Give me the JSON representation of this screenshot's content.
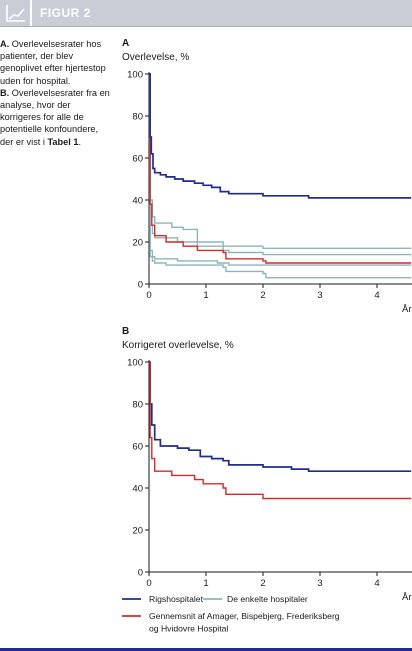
{
  "header": {
    "title": "FIGUR 2",
    "icon": "line-chart-icon"
  },
  "caption": {
    "a_label": "A.",
    "a_text": "Overlevelsesrater hos patienter, der blev genoplivet efter hjertestop uden for hospital.",
    "b_label": "B.",
    "b_text_before": "Overlevelsesrater fra en analyse, hvor der korrigeres for alle de potentielle konfoundere, der er vist i",
    "b_ref": "Tabel 1",
    "b_text_after": "."
  },
  "colors": {
    "rigshospitalet": "#1f2d8c",
    "enkelte": "#8cb5bd",
    "gennemsnit": "#d42a2a",
    "header": "#c9ced6"
  },
  "legend": [
    {
      "name": "Rigshospitalet",
      "color": "#1f2d8c"
    },
    {
      "name": "De enkelte hospitaler",
      "color": "#8cb5bd"
    },
    {
      "name": "Gennemsnit af Amager, Bispebjerg, Frederiksberg og Hvidovre Hospital",
      "color": "#d42a2a"
    }
  ],
  "chart_data": [
    {
      "type": "line",
      "panel": "A",
      "ylabel": "Overlevelse, %",
      "xlabel": "År",
      "xlim": [
        0,
        4.6
      ],
      "ylim": [
        0,
        100
      ],
      "xticks": [
        0,
        1,
        2,
        3,
        4
      ],
      "yticks": [
        0,
        20,
        40,
        60,
        80,
        100
      ],
      "series": [
        {
          "name": "De enkelte hospitaler",
          "color": "#8cb5bd",
          "points": [
            [
              0,
              100
            ],
            [
              0.02,
              40
            ],
            [
              0.06,
              32
            ],
            [
              0.1,
              29
            ],
            [
              0.4,
              27
            ],
            [
              0.6,
              26
            ],
            [
              0.85,
              20
            ],
            [
              1.3,
              18
            ],
            [
              2.0,
              17
            ],
            [
              4.6,
              17
            ]
          ]
        },
        {
          "name": "De enkelte hospitaler",
          "color": "#8cb5bd",
          "points": [
            [
              0,
              100
            ],
            [
              0.02,
              28
            ],
            [
              0.06,
              24
            ],
            [
              0.1,
              22
            ],
            [
              0.5,
              20
            ],
            [
              0.85,
              18
            ],
            [
              1.3,
              16
            ],
            [
              1.4,
              15
            ],
            [
              2.0,
              14
            ],
            [
              4.6,
              14
            ]
          ]
        },
        {
          "name": "De enkelte hospitaler",
          "color": "#8cb5bd",
          "points": [
            [
              0,
              100
            ],
            [
              0.02,
              16
            ],
            [
              0.06,
              13
            ],
            [
              0.1,
              12
            ],
            [
              0.5,
              11
            ],
            [
              1.2,
              10
            ],
            [
              1.4,
              9
            ],
            [
              4.6,
              9
            ]
          ]
        },
        {
          "name": "De enkelte hospitaler",
          "color": "#8cb5bd",
          "points": [
            [
              0,
              100
            ],
            [
              0.02,
              13
            ],
            [
              0.06,
              11
            ],
            [
              0.1,
              10
            ],
            [
              0.3,
              9
            ],
            [
              1.3,
              8
            ],
            [
              1.35,
              6
            ],
            [
              2.0,
              5
            ],
            [
              2.05,
              3
            ],
            [
              4.6,
              3
            ]
          ]
        },
        {
          "name": "Gennemsnit af Amager, Bispebjerg, Frederiksberg og Hvidovre Hospital",
          "color": "#d42a2a",
          "points": [
            [
              0,
              100
            ],
            [
              0.02,
              38
            ],
            [
              0.05,
              28
            ],
            [
              0.1,
              23
            ],
            [
              0.3,
              20
            ],
            [
              0.6,
              18
            ],
            [
              0.85,
              16
            ],
            [
              1.3,
              15
            ],
            [
              1.35,
              12
            ],
            [
              2.0,
              11
            ],
            [
              2.05,
              10
            ],
            [
              4.6,
              10
            ]
          ]
        },
        {
          "name": "Rigshospitalet",
          "color": "#1f2d8c",
          "points": [
            [
              0,
              100
            ],
            [
              0.02,
              70
            ],
            [
              0.04,
              62
            ],
            [
              0.07,
              55
            ],
            [
              0.1,
              53
            ],
            [
              0.2,
              52
            ],
            [
              0.3,
              51
            ],
            [
              0.45,
              50
            ],
            [
              0.6,
              49
            ],
            [
              0.8,
              48
            ],
            [
              0.95,
              47
            ],
            [
              1.1,
              46
            ],
            [
              1.25,
              44
            ],
            [
              1.4,
              43
            ],
            [
              2.0,
              42
            ],
            [
              2.8,
              41
            ],
            [
              4.6,
              41
            ]
          ]
        }
      ]
    },
    {
      "type": "line",
      "panel": "B",
      "ylabel": "Korrigeret overlevelse, %",
      "xlabel": "År",
      "xlim": [
        0,
        4.6
      ],
      "ylim": [
        0,
        100
      ],
      "xticks": [
        0,
        1,
        2,
        3,
        4
      ],
      "yticks": [
        0,
        20,
        40,
        60,
        80,
        100
      ],
      "series": [
        {
          "name": "Rigshospitalet",
          "color": "#1f2d8c",
          "points": [
            [
              0,
              100
            ],
            [
              0.02,
              80
            ],
            [
              0.05,
              70
            ],
            [
              0.1,
              63
            ],
            [
              0.2,
              60
            ],
            [
              0.5,
              59
            ],
            [
              0.7,
              58
            ],
            [
              0.9,
              55
            ],
            [
              1.1,
              54
            ],
            [
              1.3,
              53
            ],
            [
              1.4,
              51
            ],
            [
              2.0,
              50
            ],
            [
              2.5,
              49
            ],
            [
              2.8,
              48
            ],
            [
              4.6,
              48
            ]
          ]
        },
        {
          "name": "Gennemsnit af Amager, Bispebjerg, Frederiksberg og Hvidovre Hospital",
          "color": "#d42a2a",
          "points": [
            [
              0,
              100
            ],
            [
              0.02,
              64
            ],
            [
              0.05,
              54
            ],
            [
              0.1,
              48
            ],
            [
              0.4,
              46
            ],
            [
              0.8,
              44
            ],
            [
              0.95,
              42
            ],
            [
              1.3,
              40
            ],
            [
              1.35,
              37
            ],
            [
              2.0,
              35
            ],
            [
              4.6,
              35
            ]
          ]
        }
      ]
    }
  ]
}
